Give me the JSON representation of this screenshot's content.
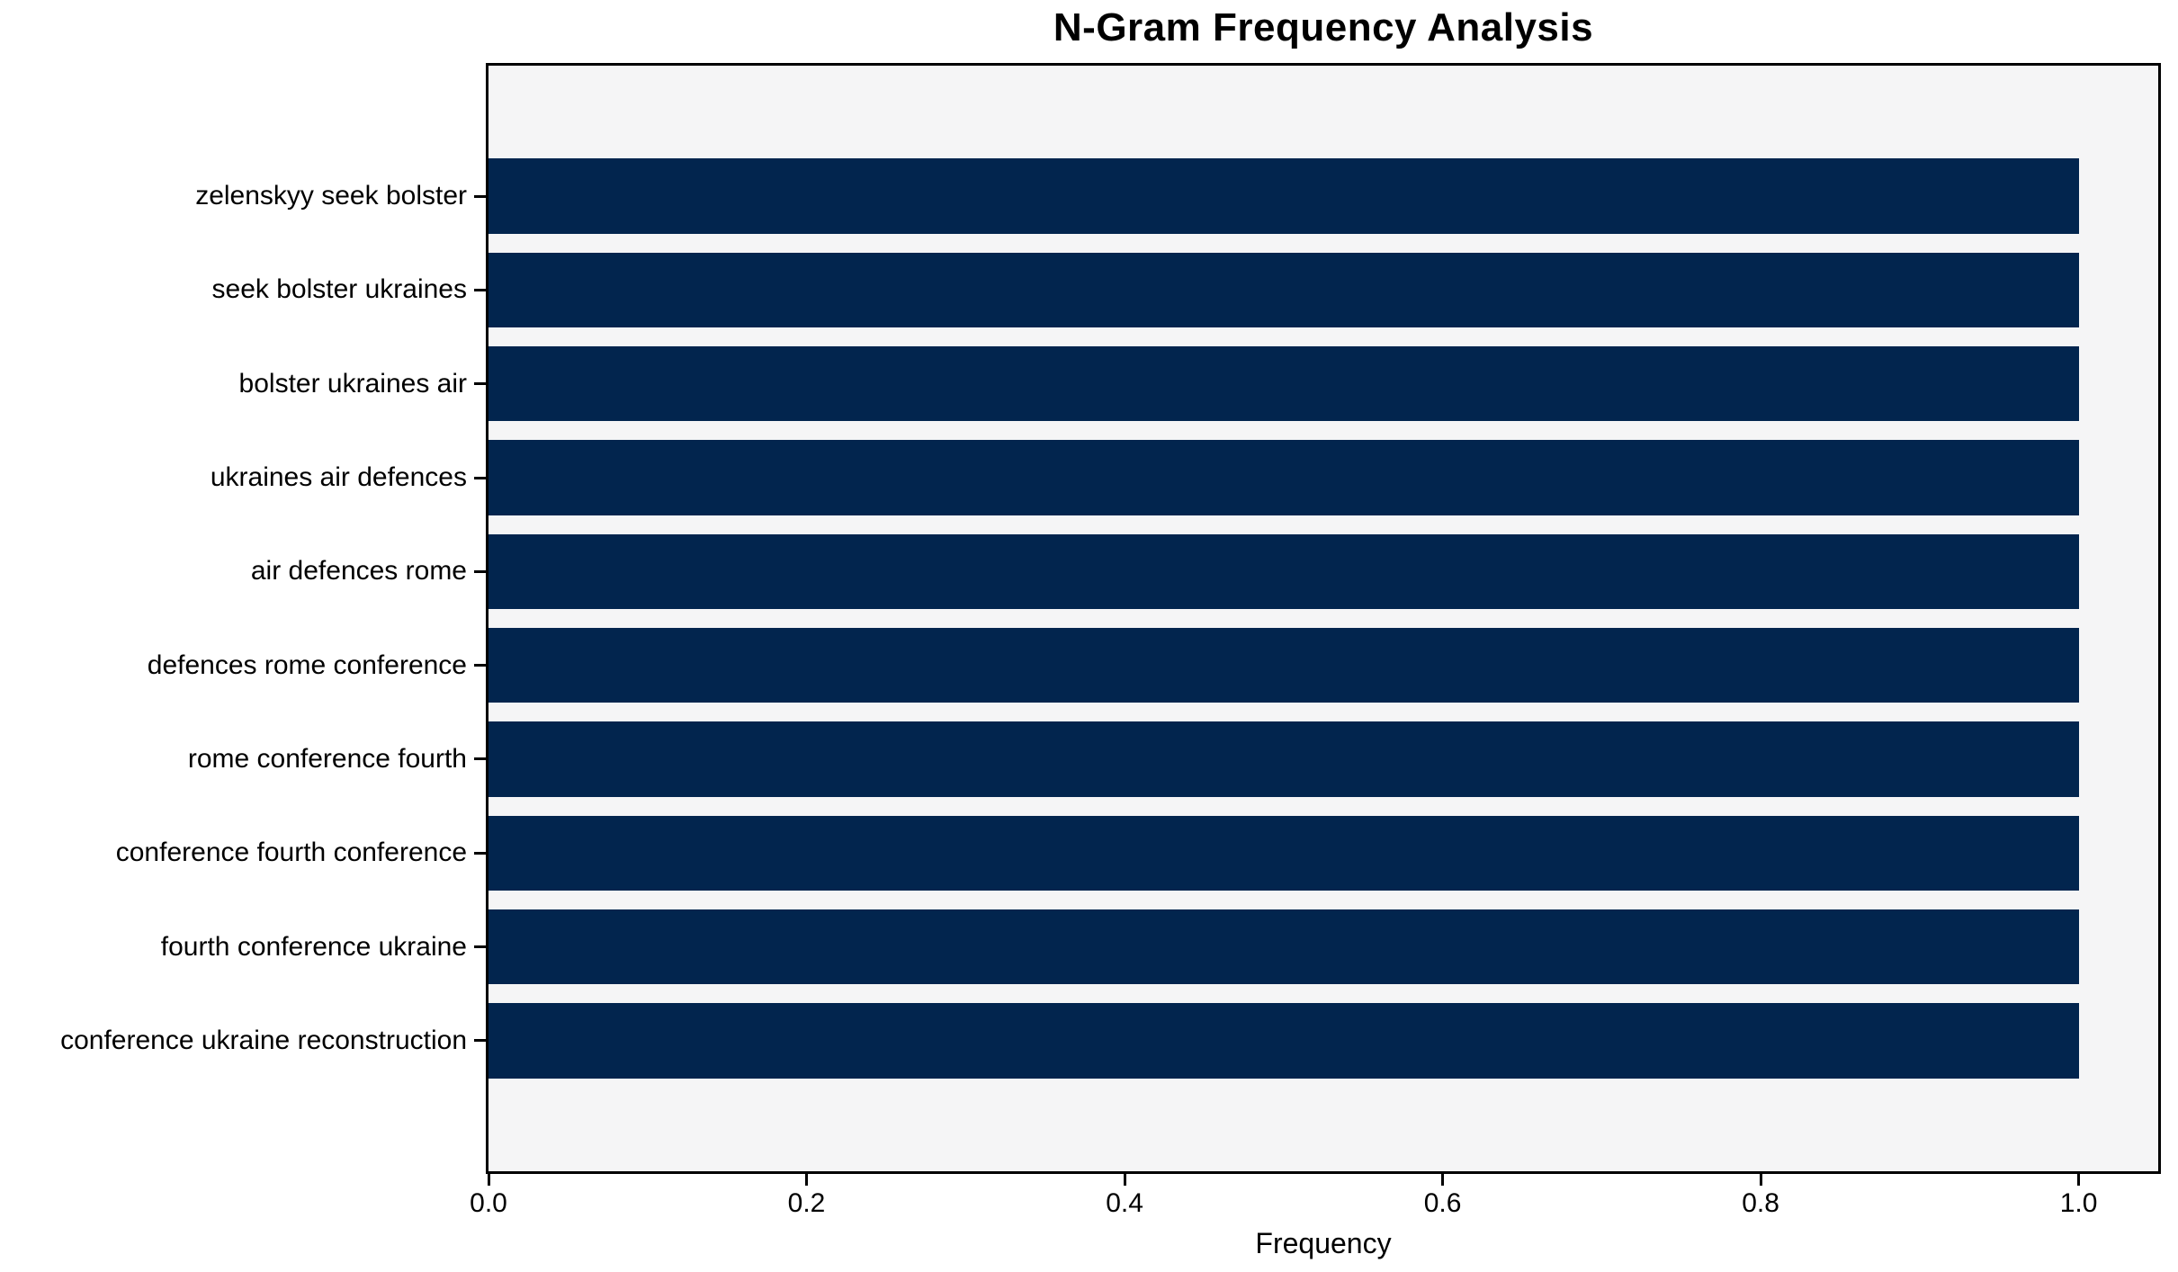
{
  "chart_data": {
    "type": "bar",
    "orientation": "horizontal",
    "title": "N-Gram Frequency Analysis",
    "xlabel": "Frequency",
    "ylabel": "",
    "categories": [
      "zelenskyy seek bolster",
      "seek bolster ukraines",
      "bolster ukraines air",
      "ukraines air defences",
      "air defences rome",
      "defences rome conference",
      "rome conference fourth",
      "conference fourth conference",
      "fourth conference ukraine",
      "conference ukraine reconstruction"
    ],
    "values": [
      1.0,
      1.0,
      1.0,
      1.0,
      1.0,
      1.0,
      1.0,
      1.0,
      1.0,
      1.0
    ],
    "xticks": [
      0.0,
      0.2,
      0.4,
      0.6,
      0.8,
      1.0
    ],
    "xtick_labels": [
      "0.0",
      "0.2",
      "0.4",
      "0.6",
      "0.8",
      "1.0"
    ],
    "xlim": [
      0,
      1.05
    ],
    "bar_thickness": 0.8,
    "y_margin_units": 0.89,
    "grid": false,
    "legend": null,
    "colors": {
      "bar": "#02254e",
      "plot_bg": "#f5f5f6",
      "spine": "#000000",
      "text": "#000000",
      "figure_bg": "#ffffff"
    }
  }
}
